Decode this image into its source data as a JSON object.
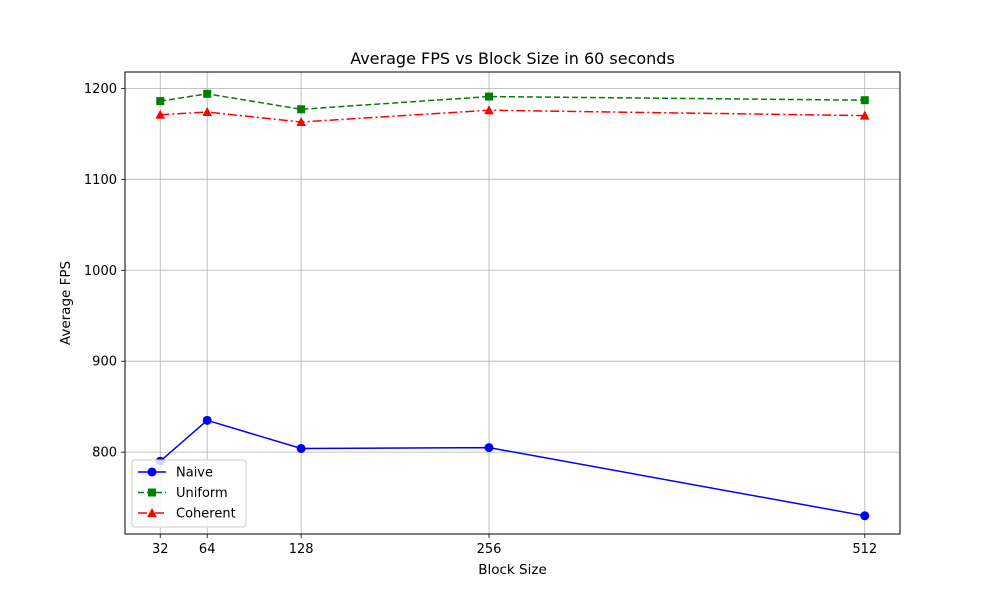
{
  "chart_data": {
    "type": "line",
    "title": "Average FPS vs Block Size in 60 seconds",
    "xlabel": "Block Size",
    "ylabel": "Average FPS",
    "x": [
      32,
      64,
      128,
      256,
      512
    ],
    "x_tick_labels": [
      "32",
      "64",
      "128",
      "256",
      "512"
    ],
    "xlim": [
      8,
      536
    ],
    "ylim": [
      710,
      1218
    ],
    "y_ticks": [
      800,
      900,
      1000,
      1100,
      1200
    ],
    "grid": true,
    "legend_position": "lower-left",
    "series": [
      {
        "name": "Naive",
        "values": [
          790,
          835,
          804,
          805,
          730
        ],
        "color": "#0000ff",
        "linestyle": "solid",
        "marker": "circle"
      },
      {
        "name": "Uniform",
        "values": [
          1186,
          1194,
          1177,
          1191,
          1187
        ],
        "color": "#008000",
        "linestyle": "dashed",
        "marker": "square"
      },
      {
        "name": "Coherent",
        "values": [
          1171,
          1174,
          1163,
          1176,
          1170
        ],
        "color": "#ff0000",
        "linestyle": "dashdot",
        "marker": "triangle"
      }
    ]
  }
}
